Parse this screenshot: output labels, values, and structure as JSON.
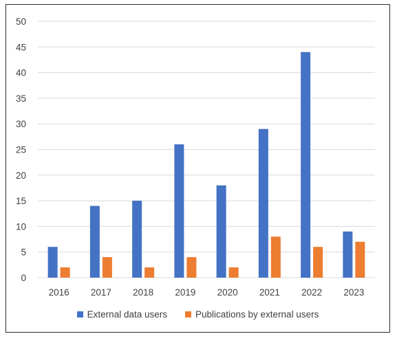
{
  "chart_data": {
    "type": "bar",
    "categories": [
      "2016",
      "2017",
      "2018",
      "2019",
      "2020",
      "2021",
      "2022",
      "2023"
    ],
    "series": [
      {
        "name": "External data users",
        "values": [
          6,
          14,
          15,
          26,
          18,
          29,
          44,
          9
        ],
        "color": "#4472C4"
      },
      {
        "name": "Publications by external users",
        "values": [
          2,
          4,
          2,
          4,
          2,
          8,
          6,
          7
        ],
        "color": "#ED7D31"
      }
    ],
    "ylim": [
      0,
      50
    ],
    "yticks": [
      "0",
      "5",
      "10",
      "15",
      "20",
      "25",
      "30",
      "35",
      "40",
      "45",
      "50"
    ],
    "grid": true,
    "legend_position": "bottom",
    "title": "",
    "xlabel": "",
    "ylabel": ""
  }
}
